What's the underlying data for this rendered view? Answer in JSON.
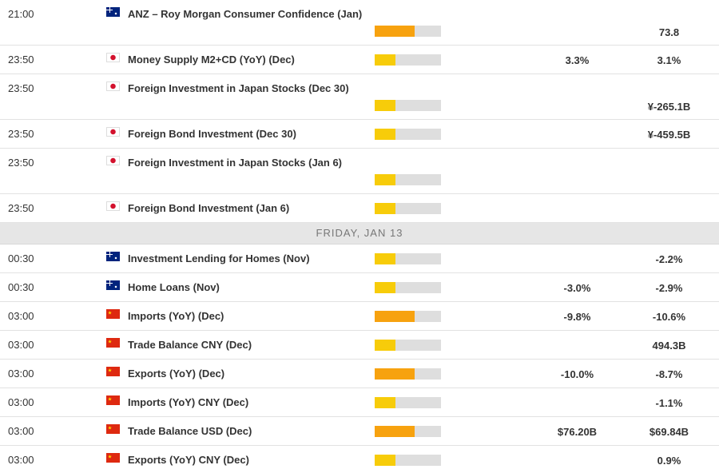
{
  "rows": [
    {
      "time": "21:00",
      "event": "ANZ – Roy Morgan Consumer Confidence (Jan)",
      "previous": "73.8"
    },
    {
      "time": "23:50",
      "event": "Money Supply M2+CD (YoY) (Dec)",
      "forecast": "3.3%",
      "previous": "3.1%"
    },
    {
      "time": "23:50",
      "event": "Foreign Investment in Japan Stocks (Dec 30)",
      "previous": "¥-265.1B"
    },
    {
      "time": "23:50",
      "event": "Foreign Bond Investment (Dec 30)",
      "previous": "¥-459.5B"
    },
    {
      "time": "23:50",
      "event": "Foreign Investment in Japan Stocks (Jan 6)"
    },
    {
      "time": "23:50",
      "event": "Foreign Bond Investment (Jan 6)"
    },
    {
      "time": "00:30",
      "event": "Investment Lending for Homes (Nov)",
      "previous": "-2.2%"
    },
    {
      "time": "00:30",
      "event": "Home Loans (Nov)",
      "forecast": "-3.0%",
      "previous": "-2.9%"
    },
    {
      "time": "03:00",
      "event": "Imports (YoY) (Dec)",
      "forecast": "-9.8%",
      "previous": "-10.6%"
    },
    {
      "time": "03:00",
      "event": "Trade Balance CNY (Dec)",
      "previous": "494.3B"
    },
    {
      "time": "03:00",
      "event": "Exports (YoY) (Dec)",
      "forecast": "-10.0%",
      "previous": "-8.7%"
    },
    {
      "time": "03:00",
      "event": "Imports (YoY) CNY (Dec)",
      "previous": "-1.1%"
    },
    {
      "time": "03:00",
      "event": "Trade Balance USD (Dec)",
      "forecast": "$76.20B",
      "previous": "$69.84B"
    },
    {
      "time": "03:00",
      "event": "Exports (YoY) CNY (Dec)",
      "previous": "0.9%"
    }
  ],
  "divider": "FRIDAY, JAN 13"
}
